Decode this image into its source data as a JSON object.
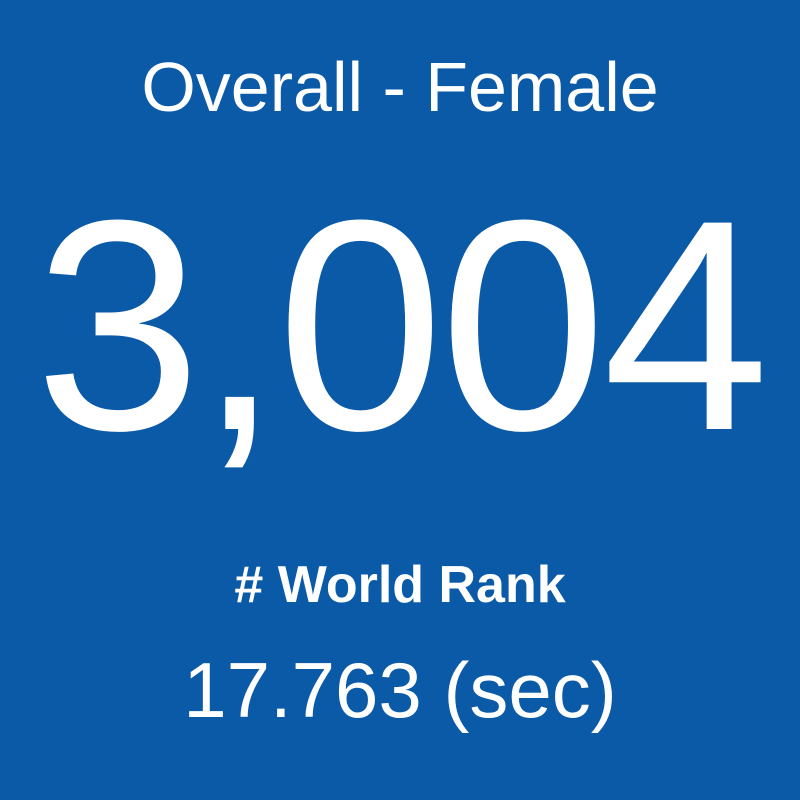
{
  "tile": {
    "title": "Overall - Female",
    "rank": "3,004",
    "label": "# World Rank",
    "time": "17.763 (sec)"
  }
}
